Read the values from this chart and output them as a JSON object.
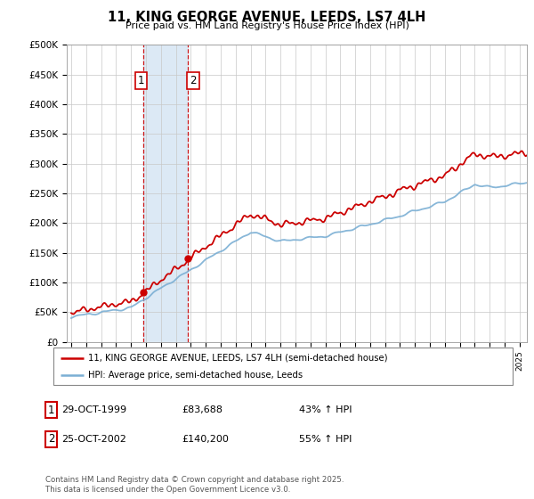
{
  "title": "11, KING GEORGE AVENUE, LEEDS, LS7 4LH",
  "subtitle": "Price paid vs. HM Land Registry's House Price Index (HPI)",
  "legend_line1": "11, KING GEORGE AVENUE, LEEDS, LS7 4LH (semi-detached house)",
  "legend_line2": "HPI: Average price, semi-detached house, Leeds",
  "annotation1_date": "29-OCT-1999",
  "annotation1_price": "£83,688",
  "annotation1_hpi": "43% ↑ HPI",
  "annotation2_date": "25-OCT-2002",
  "annotation2_price": "£140,200",
  "annotation2_hpi": "55% ↑ HPI",
  "footer": "Contains HM Land Registry data © Crown copyright and database right 2025.\nThis data is licensed under the Open Government Licence v3.0.",
  "red_color": "#cc0000",
  "blue_color": "#7bafd4",
  "highlight_color": "#dce9f5",
  "ylim_min": 0,
  "ylim_max": 500000,
  "ytick_step": 50000,
  "x_start_year": 1995,
  "x_end_year": 2025,
  "purchase1_year": 1999.83,
  "purchase2_year": 2002.81,
  "purchase1_value": 83688,
  "purchase2_value": 140200
}
